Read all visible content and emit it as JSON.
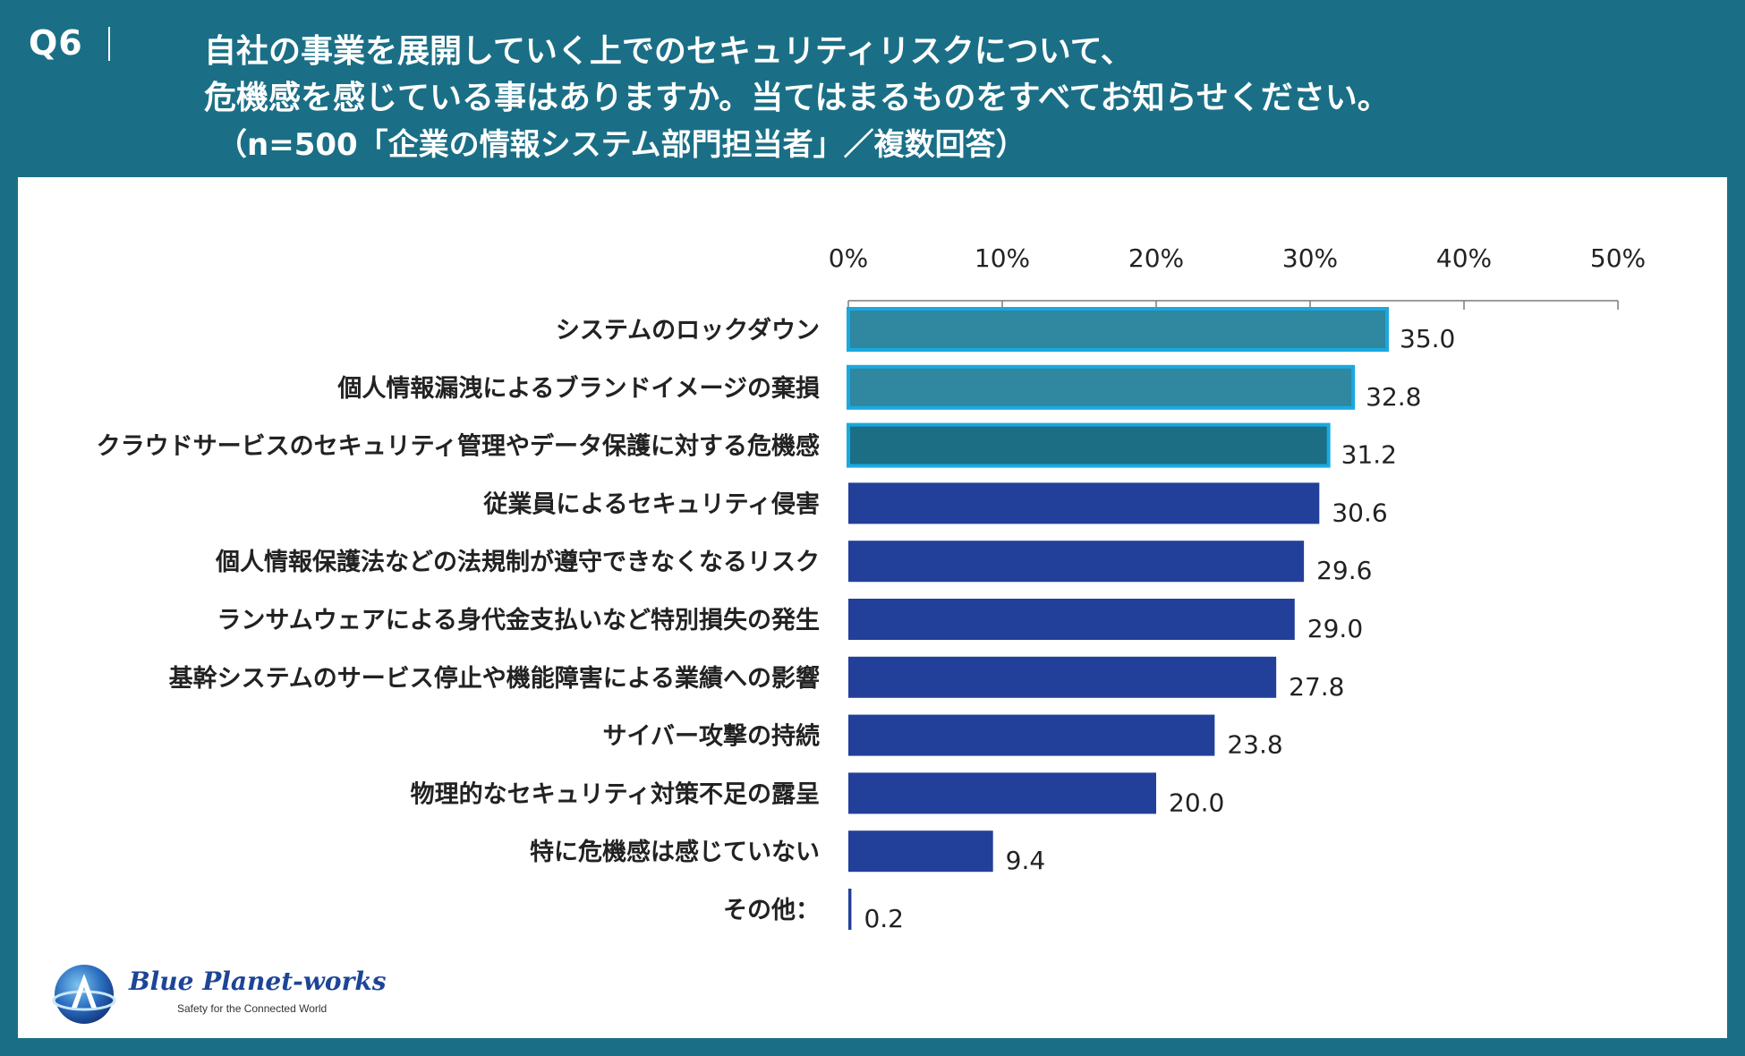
{
  "header": {
    "qnum": "Q6",
    "question_line1": "自社の事業を展開していく上でのセキュリティリスクについて、",
    "question_line2": "危機感を感じている事はありますか。当てはまるものをすべてお知らせください。",
    "subtitle": "（n=500「企業の情報システム部門担当者」／複数回答）"
  },
  "logo": {
    "name": "Blue Planet-works",
    "tagline": "Safety for the Connected World"
  },
  "colors": {
    "background": "#1a6f86",
    "panel": "#ffffff",
    "bar_default": "#22409a",
    "bar_highlight_1": "#2f87a0",
    "bar_highlight_2": "#1b6e84",
    "highlight_border": "#19a9e0",
    "axis": "#7a7a7a",
    "text": "#222222"
  },
  "chart_data": {
    "type": "bar",
    "orientation": "horizontal",
    "unit": "%",
    "xlim": [
      0,
      50
    ],
    "ticks": [
      0,
      10,
      20,
      30,
      40,
      50
    ],
    "tick_labels": [
      "0%",
      "10%",
      "20%",
      "30%",
      "40%",
      "50%"
    ],
    "categories": [
      "システムのロックダウン",
      "個人情報漏洩によるブランドイメージの棄損",
      "クラウドサービスのセキュリティ管理やデータ保護に対する危機感",
      "従業員によるセキュリティ侵害",
      "個人情報保護法などの法規制が遵守できなくなるリスク",
      "ランサムウェアによる身代金支払いなど特別損失の発生",
      "基幹システムのサービス停止や機能障害による業績への影響",
      "サイバー攻撃の持続",
      "物理的なセキュリティ対策不足の露呈",
      "特に危機感は感じていない",
      "その他："
    ],
    "values": [
      35.0,
      32.8,
      31.2,
      30.6,
      29.6,
      29.0,
      27.8,
      23.8,
      20.0,
      9.4,
      0.2
    ],
    "value_labels": [
      "35.0",
      "32.8",
      "31.2",
      "30.6",
      "29.6",
      "29.0",
      "27.8",
      "23.8",
      "20.0",
      "9.4",
      "0.2"
    ],
    "highlight": [
      "primary",
      "primary",
      "secondary",
      "none",
      "none",
      "none",
      "none",
      "none",
      "none",
      "none",
      "none"
    ]
  }
}
